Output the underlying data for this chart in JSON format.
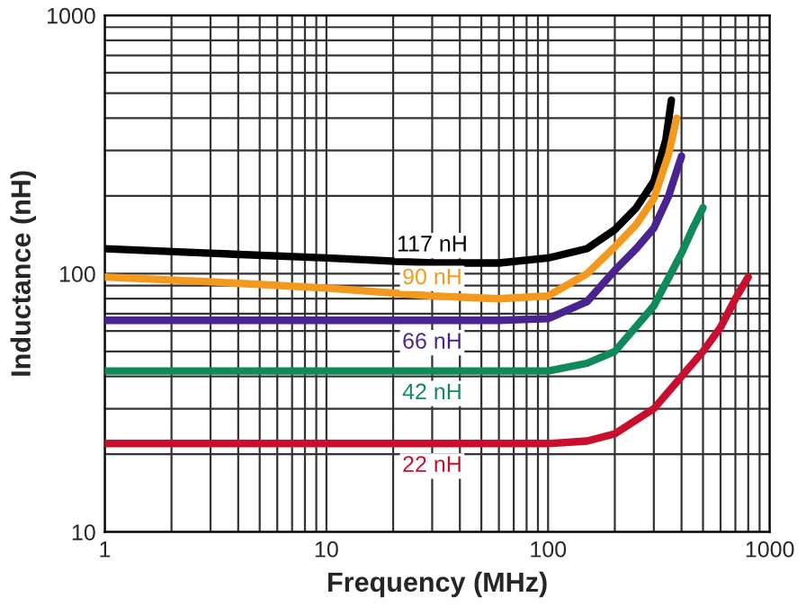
{
  "chart_data": {
    "type": "line",
    "xlabel": "Frequency (MHz)",
    "ylabel": "Inductance (nH)",
    "log": "xy",
    "grid": true,
    "legend": false,
    "xlim": [
      1,
      1000
    ],
    "xticks": [
      1,
      10,
      100,
      1000
    ],
    "ylim": [
      10,
      1000
    ],
    "yticks": [
      10,
      100,
      1000
    ],
    "series": [
      {
        "name": "117 nH",
        "color": "#000000",
        "x": [
          1,
          3,
          10,
          30,
          60,
          100,
          150,
          200,
          250,
          300,
          340,
          360
        ],
        "values": [
          125,
          120,
          115,
          110,
          110,
          115,
          125,
          148,
          180,
          228,
          330,
          470
        ]
      },
      {
        "name": "90 nH",
        "color": "#f39a1e",
        "x": [
          1,
          3,
          10,
          30,
          60,
          100,
          150,
          200,
          250,
          300,
          350,
          380
        ],
        "values": [
          97,
          93,
          88,
          82,
          80,
          82,
          100,
          127,
          155,
          195,
          290,
          400
        ]
      },
      {
        "name": "66 nH",
        "color": "#4b2390",
        "x": [
          1,
          3,
          10,
          30,
          60,
          100,
          150,
          200,
          250,
          300,
          350,
          400
        ],
        "values": [
          66,
          66,
          66,
          66,
          66,
          67,
          78,
          103,
          125,
          150,
          200,
          285
        ]
      },
      {
        "name": "42 nH",
        "color": "#108a5a",
        "x": [
          1,
          3,
          10,
          30,
          60,
          100,
          150,
          200,
          300,
          400,
          450,
          500
        ],
        "values": [
          42,
          42,
          42,
          42,
          42,
          42,
          45,
          50,
          75,
          120,
          150,
          180
        ]
      },
      {
        "name": "22 nH",
        "color": "#c8102e",
        "x": [
          1,
          3,
          10,
          30,
          60,
          100,
          150,
          200,
          300,
          500,
          600,
          700,
          800
        ],
        "values": [
          22,
          22,
          22,
          22,
          22,
          22,
          22.5,
          24,
          30,
          50,
          62,
          80,
          97
        ]
      }
    ]
  }
}
